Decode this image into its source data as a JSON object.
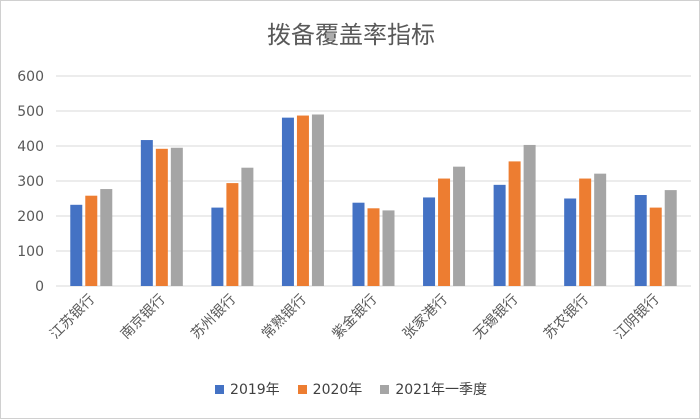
{
  "chart_data": {
    "type": "bar",
    "title": "拨备覆盖率指标",
    "categories": [
      "江苏银行",
      "南京银行",
      "苏州银行",
      "常熟银行",
      "紫金银行",
      "张家港行",
      "无锡银行",
      "苏农银行",
      "江阴银行"
    ],
    "series": [
      {
        "name": "2019年",
        "color": "#4472C4",
        "values": [
          232,
          417,
          224,
          481,
          238,
          253,
          289,
          250,
          260
        ]
      },
      {
        "name": "2020年",
        "color": "#ED7D31",
        "values": [
          258,
          392,
          294,
          487,
          222,
          307,
          356,
          307,
          224
        ]
      },
      {
        "name": "2021年一季度",
        "color": "#A5A5A5",
        "values": [
          277,
          395,
          338,
          490,
          216,
          341,
          403,
          321,
          274
        ]
      }
    ],
    "ylim": [
      0,
      600
    ],
    "yticks": [
      "0",
      "100",
      "200",
      "300",
      "400",
      "500",
      "600"
    ],
    "grid": true,
    "legend": "bottom"
  }
}
